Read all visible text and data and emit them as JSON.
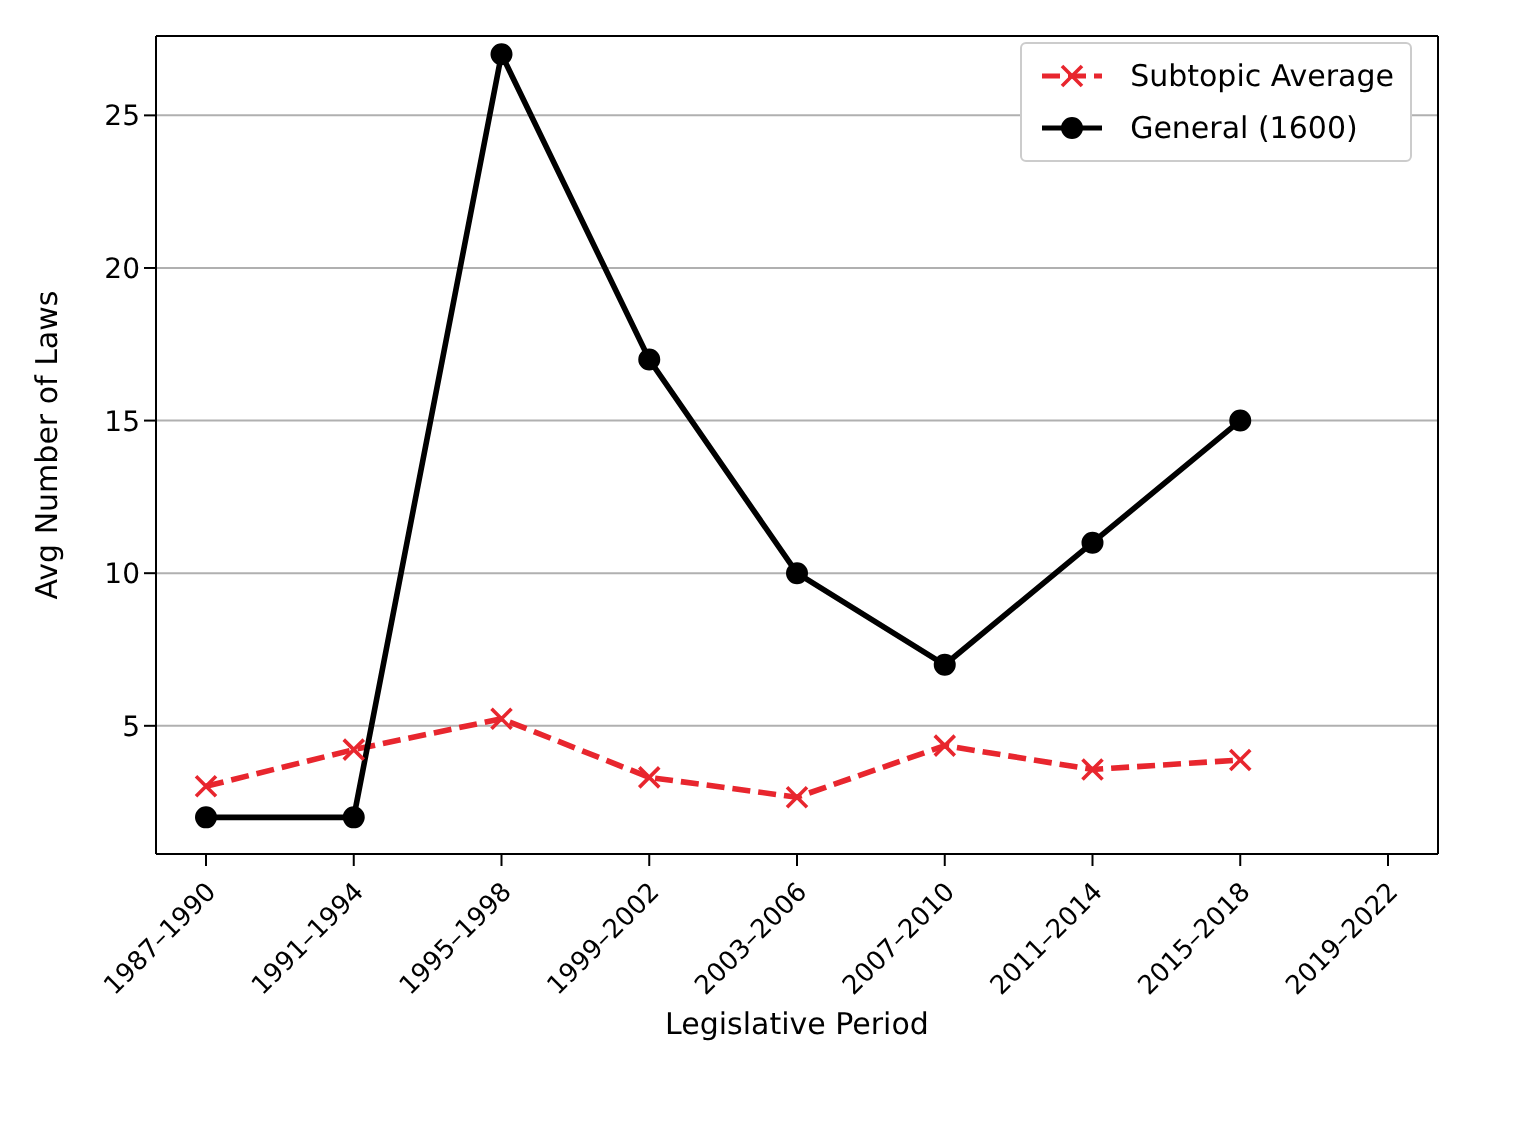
{
  "chart_data": {
    "type": "line",
    "xlabel": "Legislative Period",
    "ylabel": "Avg Number of Laws",
    "categories": [
      "1987–1990",
      "1991–1994",
      "1995–1998",
      "1999–2002",
      "2003–2006",
      "2007–2010",
      "2011–2014",
      "2015–2018",
      "2019–2022"
    ],
    "series": [
      {
        "name": "Subtopic Average",
        "color": "#e8262e",
        "marker": "cross",
        "line_style": "dashed",
        "values": [
          3.02,
          4.22,
          5.23,
          3.31,
          2.66,
          4.35,
          3.57,
          3.88,
          null
        ]
      },
      {
        "name": "General (1600)",
        "color": "#000000",
        "marker": "circle",
        "line_style": "solid",
        "values": [
          2,
          2,
          27,
          17,
          10,
          7,
          11,
          15,
          null
        ]
      }
    ],
    "ylim": [
      0.8,
      27.6
    ],
    "yticks": [
      5,
      10,
      15,
      20,
      25
    ],
    "grid": "y",
    "legend": "top right"
  }
}
